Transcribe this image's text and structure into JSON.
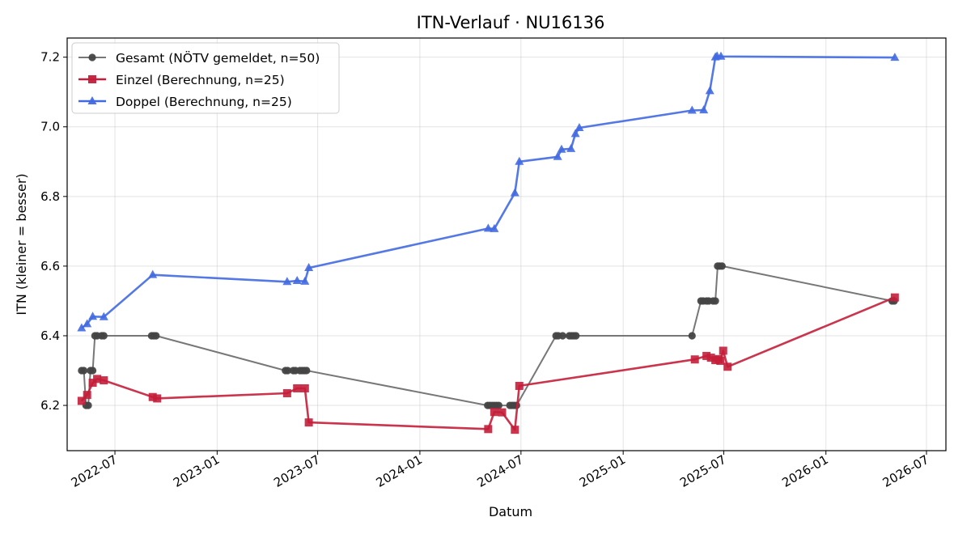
{
  "chart_data": {
    "type": "line",
    "title": "ITN-Verlauf · NU16136",
    "xlabel": "Datum",
    "ylabel": "ITN  (kleiner = besser)",
    "grid": true,
    "legend_position": "top-left",
    "xlim": [
      "2022-04-06",
      "2026-08-05"
    ],
    "ylim": [
      6.07,
      7.255
    ],
    "x_ticks": [
      "2022-07-01",
      "2023-01-01",
      "2023-07-01",
      "2024-01-01",
      "2024-07-01",
      "2025-01-01",
      "2025-07-01",
      "2026-01-01",
      "2026-07-01"
    ],
    "x_tick_labels": [
      "2022-07",
      "2023-01",
      "2023-07",
      "2024-01",
      "2024-07",
      "2025-01",
      "2025-07",
      "2026-01",
      "2026-07"
    ],
    "y_ticks": [
      6.2,
      6.4,
      6.6,
      6.8,
      7.0,
      7.2
    ],
    "y_tick_labels": [
      "6.2",
      "6.4",
      "6.6",
      "6.8",
      "7.0",
      "7.2"
    ],
    "series": [
      {
        "name": "Gesamt (NÖTV gemeldet, n=50)",
        "color": "#777777",
        "marker": "circle",
        "marker_color": "#444444",
        "points": [
          [
            "2022-05-02",
            6.3
          ],
          [
            "2022-05-06",
            6.3
          ],
          [
            "2022-05-10",
            6.2
          ],
          [
            "2022-05-14",
            6.2
          ],
          [
            "2022-05-18",
            6.3
          ],
          [
            "2022-05-22",
            6.3
          ],
          [
            "2022-05-26",
            6.4
          ],
          [
            "2022-05-30",
            6.4
          ],
          [
            "2022-06-07",
            6.4
          ],
          [
            "2022-06-11",
            6.4
          ],
          [
            "2022-09-05",
            6.4
          ],
          [
            "2022-09-09",
            6.4
          ],
          [
            "2022-09-13",
            6.4
          ],
          [
            "2023-05-04",
            6.3
          ],
          [
            "2023-05-08",
            6.3
          ],
          [
            "2023-05-18",
            6.3
          ],
          [
            "2023-05-22",
            6.3
          ],
          [
            "2023-05-30",
            6.3
          ],
          [
            "2023-06-03",
            6.3
          ],
          [
            "2023-06-07",
            6.3
          ],
          [
            "2023-06-11",
            6.3
          ],
          [
            "2024-05-02",
            6.2
          ],
          [
            "2024-05-06",
            6.2
          ],
          [
            "2024-05-10",
            6.2
          ],
          [
            "2024-05-14",
            6.2
          ],
          [
            "2024-05-18",
            6.2
          ],
          [
            "2024-05-22",
            6.2
          ],
          [
            "2024-06-11",
            6.2
          ],
          [
            "2024-06-15",
            6.2
          ],
          [
            "2024-06-19",
            6.2
          ],
          [
            "2024-06-23",
            6.2
          ],
          [
            "2024-09-02",
            6.4
          ],
          [
            "2024-09-06",
            6.4
          ],
          [
            "2024-09-14",
            6.4
          ],
          [
            "2024-09-26",
            6.4
          ],
          [
            "2024-09-30",
            6.4
          ],
          [
            "2024-10-04",
            6.4
          ],
          [
            "2024-10-08",
            6.4
          ],
          [
            "2025-05-05",
            6.4
          ],
          [
            "2025-05-21",
            6.5
          ],
          [
            "2025-05-25",
            6.5
          ],
          [
            "2025-05-31",
            6.5
          ],
          [
            "2025-06-04",
            6.5
          ],
          [
            "2025-06-12",
            6.5
          ],
          [
            "2025-06-16",
            6.5
          ],
          [
            "2025-06-20",
            6.6
          ],
          [
            "2025-06-24",
            6.6
          ],
          [
            "2025-06-28",
            6.6
          ],
          [
            "2026-04-30",
            6.5
          ],
          [
            "2026-05-04",
            6.5
          ]
        ]
      },
      {
        "name": "Einzel (Berechnung, n=25)",
        "color": "#c41e3a",
        "marker": "square",
        "points": [
          [
            "2022-05-02",
            6.213
          ],
          [
            "2022-05-12",
            6.23
          ],
          [
            "2022-05-22",
            6.265
          ],
          [
            "2022-05-30",
            6.276
          ],
          [
            "2022-06-11",
            6.272
          ],
          [
            "2022-09-07",
            6.224
          ],
          [
            "2022-09-15",
            6.22
          ],
          [
            "2023-05-07",
            6.235
          ],
          [
            "2023-05-25",
            6.249
          ],
          [
            "2023-06-08",
            6.249
          ],
          [
            "2023-06-15",
            6.151
          ],
          [
            "2024-05-03",
            6.132
          ],
          [
            "2024-05-14",
            6.181
          ],
          [
            "2024-05-28",
            6.18
          ],
          [
            "2024-06-20",
            6.13
          ],
          [
            "2024-06-28",
            6.256
          ],
          [
            "2025-05-10",
            6.332
          ],
          [
            "2025-05-31",
            6.342
          ],
          [
            "2025-06-08",
            6.337
          ],
          [
            "2025-06-16",
            6.33
          ],
          [
            "2025-06-22",
            6.333
          ],
          [
            "2025-06-25",
            6.328
          ],
          [
            "2025-06-30",
            6.357
          ],
          [
            "2025-07-08",
            6.311
          ],
          [
            "2026-05-05",
            6.51
          ]
        ]
      },
      {
        "name": "Doppel (Berechnung, n=25)",
        "color": "#4169e1",
        "marker": "triangle",
        "points": [
          [
            "2022-05-02",
            6.422
          ],
          [
            "2022-05-12",
            6.434
          ],
          [
            "2022-05-22",
            6.455
          ],
          [
            "2022-06-11",
            6.454
          ],
          [
            "2022-09-07",
            6.575
          ],
          [
            "2023-05-07",
            6.555
          ],
          [
            "2023-05-25",
            6.558
          ],
          [
            "2023-06-08",
            6.556
          ],
          [
            "2023-06-15",
            6.595
          ],
          [
            "2024-05-03",
            6.708
          ],
          [
            "2024-05-14",
            6.707
          ],
          [
            "2024-06-20",
            6.81
          ],
          [
            "2024-06-28",
            6.9
          ],
          [
            "2024-09-05",
            6.914
          ],
          [
            "2024-09-12",
            6.935
          ],
          [
            "2024-09-29",
            6.937
          ],
          [
            "2024-10-07",
            6.98
          ],
          [
            "2024-10-14",
            6.997
          ],
          [
            "2025-05-05",
            7.047
          ],
          [
            "2025-05-26",
            7.048
          ],
          [
            "2025-06-06",
            7.103
          ],
          [
            "2025-06-16",
            7.2
          ],
          [
            "2025-06-19",
            7.203
          ],
          [
            "2025-06-26",
            7.202
          ],
          [
            "2026-05-05",
            7.199
          ]
        ]
      }
    ]
  }
}
